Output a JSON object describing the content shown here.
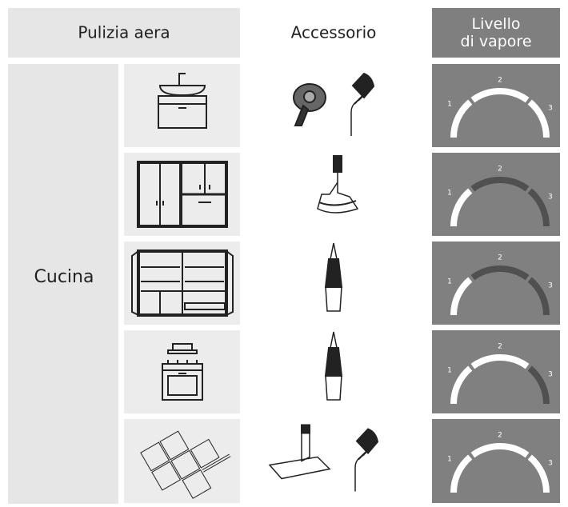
{
  "header": {
    "area": "Pulizia aera",
    "accessory": "Accessorio",
    "steam": "Livello\ndi vapore"
  },
  "room": "Cucina",
  "gauge_labels": [
    "1",
    "2",
    "3"
  ],
  "rows": [
    {
      "steam_level": 3
    },
    {
      "steam_level": 1
    },
    {
      "steam_level": 1
    },
    {
      "steam_level": 2
    },
    {
      "steam_level": 3
    }
  ]
}
